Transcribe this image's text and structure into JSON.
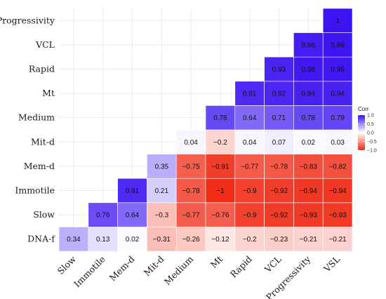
{
  "chart_data": {
    "type": "heatmap",
    "x_categories": [
      "Slow",
      "Immotile",
      "Mem-d",
      "Mit-d",
      "Medium",
      "Mt",
      "Rapid",
      "VCL",
      "Progressivity",
      "VSL"
    ],
    "y_categories": [
      "DNA-f",
      "Slow",
      "Immotile",
      "Mem-d",
      "Mit-d",
      "Medium",
      "Mt",
      "Rapid",
      "VCL",
      "Progressivity"
    ],
    "values": [
      [
        0.34,
        0.13,
        0.02,
        -0.31,
        -0.26,
        -0.12,
        -0.2,
        -0.23,
        -0.21,
        -0.21
      ],
      [
        null,
        0.76,
        0.64,
        -0.3,
        -0.77,
        -0.76,
        -0.9,
        -0.92,
        -0.93,
        -0.93
      ],
      [
        null,
        null,
        0.91,
        0.21,
        -0.78,
        -1,
        -0.9,
        -0.92,
        -0.94,
        -0.94
      ],
      [
        null,
        null,
        null,
        0.35,
        -0.75,
        -0.91,
        -0.77,
        -0.78,
        -0.83,
        -0.82
      ],
      [
        null,
        null,
        null,
        null,
        0.04,
        -0.2,
        0.04,
        0.07,
        0.02,
        0.03
      ],
      [
        null,
        null,
        null,
        null,
        null,
        0.78,
        0.64,
        0.71,
        0.78,
        0.79
      ],
      [
        null,
        null,
        null,
        null,
        null,
        null,
        0.91,
        0.92,
        0.94,
        0.94
      ],
      [
        null,
        null,
        null,
        null,
        null,
        null,
        null,
        0.93,
        0.98,
        0.98
      ],
      [
        null,
        null,
        null,
        null,
        null,
        null,
        null,
        null,
        0.96,
        0.99
      ],
      [
        null,
        null,
        null,
        null,
        null,
        null,
        null,
        null,
        null,
        1
      ]
    ],
    "labels": [
      [
        "0.34",
        "0.13",
        "0.02",
        "−0.31",
        "−0.26",
        "−0.12",
        "−0.2",
        "−0.23",
        "−0.21",
        "−0.21"
      ],
      [
        null,
        "0.76",
        "0.64",
        "−0.3",
        "−0.77",
        "−0.76",
        "−0.9",
        "−0.92",
        "−0.93",
        "−0.93"
      ],
      [
        null,
        null,
        "0.91",
        "0.21",
        "−0.78",
        "−1",
        "−0.9",
        "−0.92",
        "−0.94",
        "−0.94"
      ],
      [
        null,
        null,
        null,
        "0.35",
        "−0.75",
        "−0.91",
        "−0.77",
        "−0.78",
        "−0.83",
        "−0.82"
      ],
      [
        null,
        null,
        null,
        null,
        "0.04",
        "−0.2",
        "0.04",
        "0.07",
        "0.02",
        "0.03"
      ],
      [
        null,
        null,
        null,
        null,
        null,
        "0.78",
        "0.64",
        "0.71",
        "0.78",
        "0.79"
      ],
      [
        null,
        null,
        null,
        null,
        null,
        null,
        "0.91",
        "0.92",
        "0.94",
        "0.94"
      ],
      [
        null,
        null,
        null,
        null,
        null,
        null,
        null,
        "0.93",
        "0.98",
        "0.98"
      ],
      [
        null,
        null,
        null,
        null,
        null,
        null,
        null,
        null,
        "0.96",
        "0.99"
      ],
      [
        null,
        null,
        null,
        null,
        null,
        null,
        null,
        null,
        null,
        "1"
      ]
    ],
    "legend": {
      "title": "Corr",
      "ticks": [
        1.0,
        0.5,
        0.0,
        -0.5,
        -1.0
      ],
      "tick_labels": [
        "1.0",
        "0.5",
        "0.0",
        "−0.5",
        "−1.0"
      ]
    },
    "color_scale": {
      "low": "#f02b16",
      "mid": "#ffffff",
      "high": "#3c14f2"
    },
    "grid": true
  }
}
